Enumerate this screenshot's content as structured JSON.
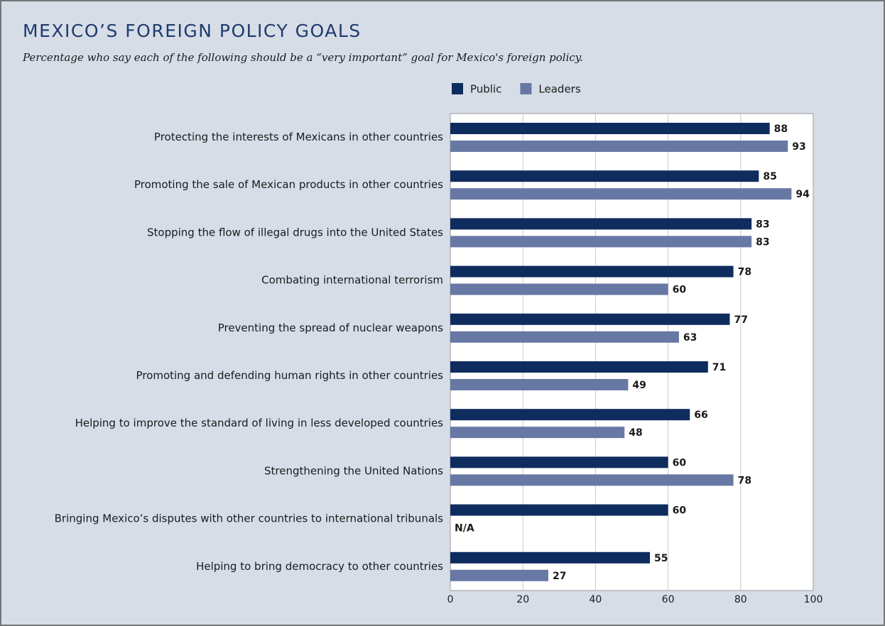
{
  "chart_data": {
    "type": "barh",
    "title": "MEXICO’S FOREIGN POLICY GOALS",
    "subtitle": "Percentage who say each of the following should be a “very important” goal for Mexico's foreign policy.",
    "categories": [
      "Protecting the interests of Mexicans in other countries",
      "Promoting the sale of Mexican products in other countries",
      "Stopping the flow of illegal drugs into the United States",
      "Combating international terrorism",
      "Preventing the spread of nuclear weapons",
      "Promoting and defending human rights in other countries",
      "Helping to improve the standard of living in less developed countries",
      "Strengthening the United Nations",
      "Bringing Mexico’s disputes with other countries to international tribunals",
      "Helping to bring democracy to other countries"
    ],
    "series": [
      {
        "name": "Public",
        "color": "#0f2c5e",
        "values": [
          88,
          85,
          83,
          78,
          77,
          71,
          66,
          60,
          60,
          55
        ]
      },
      {
        "name": "Leaders",
        "color": "#6878a4",
        "values": [
          93,
          94,
          83,
          60,
          63,
          49,
          48,
          78,
          null,
          27
        ],
        "value_labels": [
          null,
          null,
          null,
          null,
          null,
          null,
          null,
          null,
          "N/A",
          null
        ]
      }
    ],
    "xlim": [
      0,
      100
    ],
    "xticks": [
      0,
      20,
      40,
      60,
      80,
      100
    ],
    "grid": true,
    "legend": "top"
  }
}
